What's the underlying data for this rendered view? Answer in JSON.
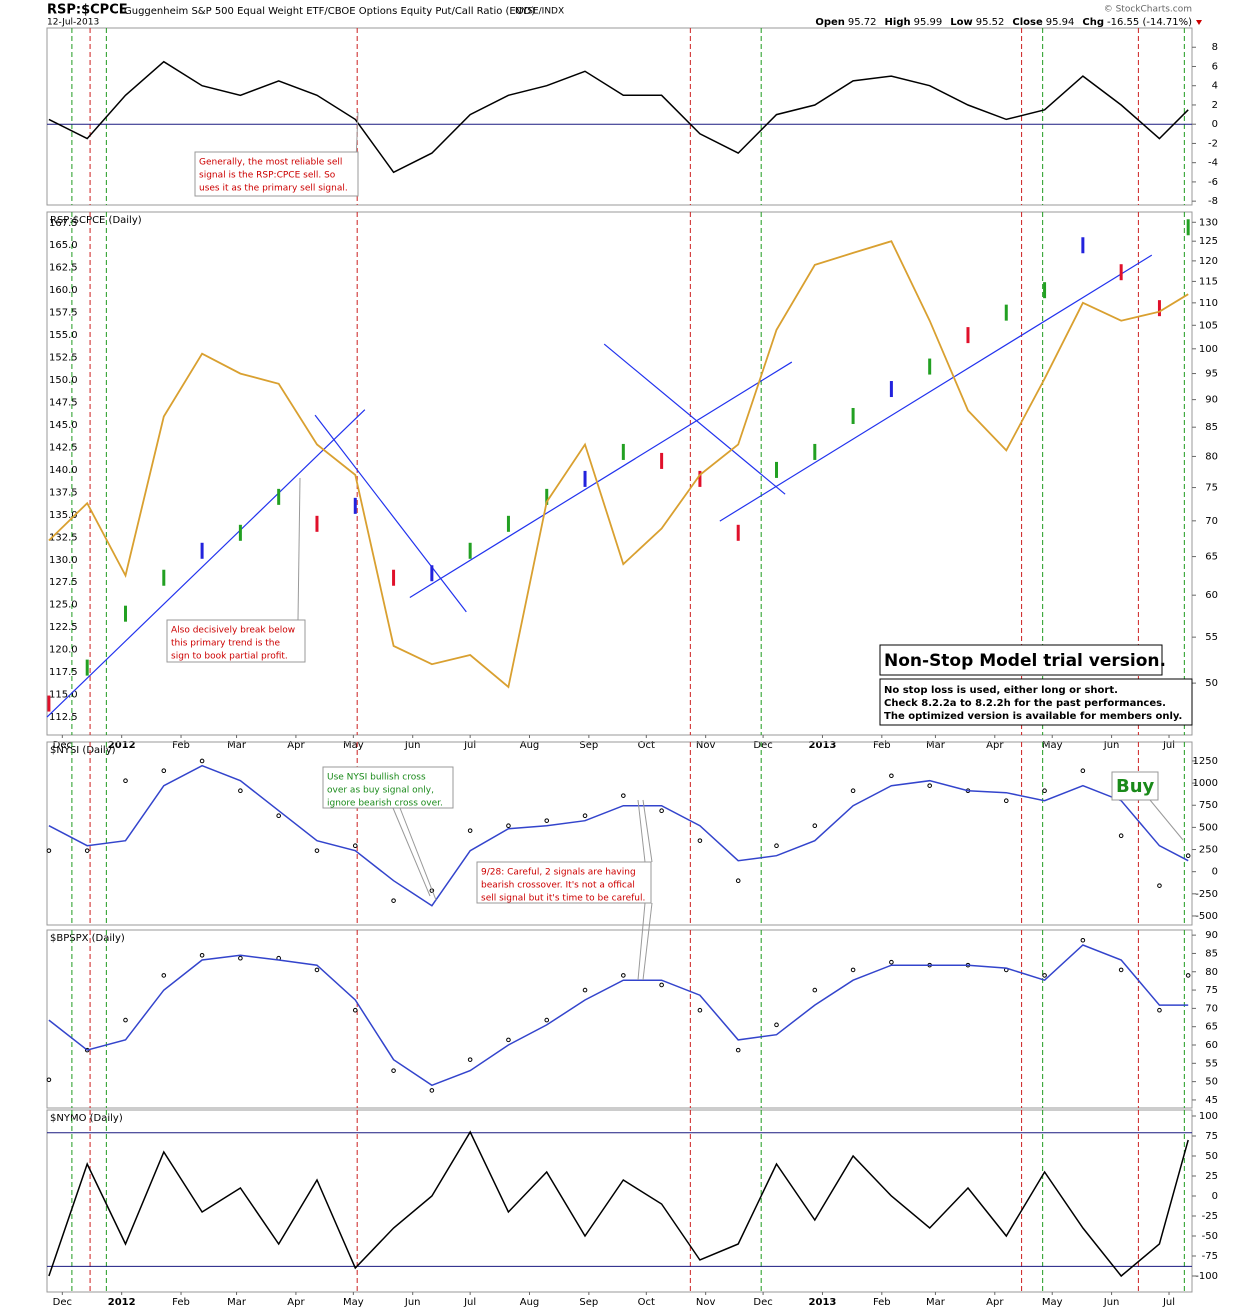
{
  "header": {
    "symbol": "RSP:$CPCE",
    "description": "Guggenheim S&P 500 Equal Weight ETF/CBOE Options Equity Put/Call Ratio (EOD)",
    "exchange": "NYSE/INDX",
    "date": "12-Jul-2013",
    "source": "© StockCharts.com",
    "quote": [
      {
        "label": "Open",
        "value": "95.72"
      },
      {
        "label": "High",
        "value": "95.99"
      },
      {
        "label": "Low",
        "value": "95.52"
      },
      {
        "label": "Close",
        "value": "95.94"
      },
      {
        "label": "Chg",
        "value": "-16.55 (-14.71%)"
      }
    ]
  },
  "signals": [
    {
      "x": 5,
      "color": "#1f9a1f"
    },
    {
      "x": 14.5,
      "color": "#cc1f1f"
    },
    {
      "x": 23,
      "color": "#1f9a1f"
    },
    {
      "x": 154,
      "color": "#cc1f1f"
    },
    {
      "x": 328,
      "color": "#cc1f1f"
    },
    {
      "x": 365,
      "color": "#1f9a1f"
    },
    {
      "x": 501,
      "color": "#cc1f1f"
    },
    {
      "x": 512,
      "color": "#1f9a1f"
    },
    {
      "x": 562,
      "color": "#cc1f1f"
    },
    {
      "x": 586,
      "color": "#1f9a1f"
    }
  ],
  "annotations": {
    "sell_note": [
      "Generally, the most reliable sell",
      "signal is the RSP:CPCE sell. So",
      "uses it as the primary sell signal."
    ],
    "trend_note": [
      "Also decisively break below",
      "this primary trend is the",
      "sign to book partial profit."
    ],
    "nysi_note": [
      "Use NYSI bullish cross",
      "over as buy signal only,",
      "ignore bearish cross over."
    ],
    "careful_note": [
      "9/28: Careful, 2 signals are having",
      "bearish crossover. It's not a offical",
      "sell signal but it's time to be careful."
    ],
    "model_title": "Non-Stop Model trial version.",
    "model_notes": [
      "No stop loss is used, either long or short.",
      "Check 8.2.2a to 8.2.2h for the past performances.",
      "The optimized version is available for members only."
    ],
    "buy": "Buy"
  },
  "chart_data": [
    {
      "type": "line",
      "xlim": [
        -8,
        590
      ],
      "ylim": [
        -8.4,
        10
      ],
      "ytick_side": "right",
      "yticks": [
        8,
        6,
        4,
        2,
        0,
        -2,
        -4,
        -6,
        -8
      ],
      "levels": [
        0
      ],
      "x": [
        -7,
        13,
        33,
        53,
        73,
        93,
        113,
        133,
        153,
        173,
        193,
        213,
        233,
        253,
        273,
        293,
        313,
        333,
        353,
        373,
        393,
        413,
        433,
        453,
        473,
        493,
        513,
        533,
        553,
        573,
        588
      ],
      "series": [
        {
          "color": "#000000",
          "style": "line",
          "values": [
            0.5,
            -1.5,
            3,
            6.5,
            4,
            3,
            4.5,
            3,
            0.5,
            -5,
            -3,
            1,
            3,
            4,
            5.5,
            3,
            3,
            -1,
            -3,
            1,
            2,
            4.5,
            5,
            4,
            2,
            0.5,
            1.5,
            5,
            2,
            -1.5,
            1.5
          ]
        }
      ]
    },
    {
      "type": "price",
      "title": "RSP:$CPCE (Daily)",
      "xlim": [
        -8,
        590
      ],
      "ylim": [
        110.5,
        168.7
      ],
      "ytick_side": "left",
      "yticks": [
        {
          "value": 112.5,
          "label": "112.5"
        },
        {
          "value": 115,
          "label": "115.0"
        },
        {
          "value": 117.5,
          "label": "117.5"
        },
        {
          "value": 120,
          "label": "120.0"
        },
        {
          "value": 122.5,
          "label": "122.5"
        },
        {
          "value": 125,
          "label": "125.0"
        },
        {
          "value": 127.5,
          "label": "127.5"
        },
        {
          "value": 130,
          "label": "130.0"
        },
        {
          "value": 132.5,
          "label": "132.5"
        },
        {
          "value": 135,
          "label": "135.0"
        },
        {
          "value": 137.5,
          "label": "137.5"
        },
        {
          "value": 140,
          "label": "140.0"
        },
        {
          "value": 142.5,
          "label": "142.5"
        },
        {
          "value": 145,
          "label": "145.0"
        },
        {
          "value": 147.5,
          "label": "147.5"
        },
        {
          "value": 150,
          "label": "150.0"
        },
        {
          "value": 152.5,
          "label": "152.5"
        },
        {
          "value": 155,
          "label": "155.0"
        },
        {
          "value": 157.5,
          "label": "157.5"
        },
        {
          "value": 160,
          "label": "160.0"
        },
        {
          "value": 162.5,
          "label": "162.5"
        },
        {
          "value": 165,
          "label": "165.0"
        },
        {
          "value": 167.5,
          "label": "167.5"
        }
      ],
      "y2lim": [
        44.9,
        132.8
      ],
      "y2log": true,
      "y2ticks": [
        130,
        125,
        120,
        115,
        110,
        105,
        100,
        95,
        90,
        85,
        80,
        75,
        70,
        65,
        60,
        55,
        50
      ],
      "xticks": [
        {
          "value": 0,
          "label": "Dec"
        },
        {
          "value": 31,
          "label": "2012"
        },
        {
          "value": 62,
          "label": "Feb"
        },
        {
          "value": 91,
          "label": "Mar"
        },
        {
          "value": 122,
          "label": "Apr"
        },
        {
          "value": 152,
          "label": "May"
        },
        {
          "value": 183,
          "label": "Jun"
        },
        {
          "value": 213,
          "label": "Jul"
        },
        {
          "value": 244,
          "label": "Aug"
        },
        {
          "value": 275,
          "label": "Sep"
        },
        {
          "value": 305,
          "label": "Oct"
        },
        {
          "value": 336,
          "label": "Nov"
        },
        {
          "value": 366,
          "label": "Dec"
        },
        {
          "value": 397,
          "label": "2013"
        },
        {
          "value": 428,
          "label": "Feb"
        },
        {
          "value": 456,
          "label": "Mar"
        },
        {
          "value": 487,
          "label": "Apr"
        },
        {
          "value": 517,
          "label": "May"
        },
        {
          "value": 548,
          "label": "Jun"
        },
        {
          "value": 578,
          "label": "Jul"
        }
      ],
      "x": [
        -7,
        13,
        33,
        53,
        73,
        93,
        113,
        133,
        153,
        173,
        193,
        213,
        233,
        253,
        273,
        293,
        313,
        333,
        353,
        373,
        393,
        413,
        433,
        453,
        473,
        493,
        513,
        533,
        553,
        573,
        588
      ],
      "series": [
        {
          "style": "bars",
          "values": [
            114,
            118,
            124,
            128,
            131,
            133,
            137,
            134,
            136,
            128,
            128.5,
            131,
            134,
            137,
            139,
            142,
            141,
            139,
            133,
            140,
            142,
            146,
            149,
            151.5,
            155,
            157.5,
            160,
            165,
            162,
            158,
            167
          ],
          "colors": [
            "#e0102a",
            "#22a022",
            "#22a022",
            "#22a022",
            "#2222dd",
            "#22a022",
            "#22a022",
            "#e0102a",
            "#2222dd",
            "#e0102a",
            "#2222dd",
            "#22a022",
            "#22a022",
            "#22a022",
            "#2222dd",
            "#22a022",
            "#e0102a",
            "#e0102a",
            "#e0102a",
            "#22a022",
            "#22a022",
            "#22a022",
            "#2222dd",
            "#22a022",
            "#e0102a",
            "#22a022",
            "#22a022",
            "#2222dd",
            "#e0102a",
            "#e0102a",
            "#22a022"
          ]
        },
        {
          "style": "line",
          "axis": "y2",
          "color": "#d9a030",
          "values": [
            67.2,
            72.6,
            62.5,
            86.9,
            99,
            95,
            93,
            82,
            77,
            54,
            52,
            53,
            49.6,
            72.8,
            82,
            64,
            68.9,
            77,
            82,
            104,
            119,
            122,
            125,
            106,
            88,
            81,
            94,
            110,
            106,
            108,
            112
          ]
        }
      ],
      "trendlines": [
        {
          "x1": -8,
          "y1": 112.5,
          "x2": 158,
          "y2": 146.7
        },
        {
          "x1": 132,
          "y1": 146.1,
          "x2": 211,
          "y2": 124.2
        },
        {
          "x1": 181.5,
          "y1": 125.8,
          "x2": 381,
          "y2": 152
        },
        {
          "x1": 283,
          "y1": 154,
          "x2": 377.5,
          "y2": 137.3
        },
        {
          "x1": 343.4,
          "y1": 134.3,
          "x2": 569,
          "y2": 163.9
        }
      ],
      "trend_color": "#2233ee"
    },
    {
      "type": "line",
      "title": "$NYSI (Daily)",
      "xlim": [
        -8,
        590
      ],
      "ylim": [
        -602,
        1464
      ],
      "ytick_side": "right",
      "yticks": [
        1250,
        1000,
        750,
        500,
        250,
        0,
        -250,
        -500
      ],
      "x": [
        -7,
        13,
        33,
        53,
        73,
        93,
        113,
        133,
        153,
        173,
        193,
        213,
        233,
        253,
        273,
        293,
        313,
        333,
        353,
        373,
        393,
        413,
        433,
        453,
        473,
        493,
        513,
        533,
        553,
        573,
        588
      ],
      "series": [
        {
          "style": "dots",
          "color": "#000000",
          "values": [
            237,
            237,
            1027,
            1140,
            1250,
            914,
            632,
            237,
            293,
            -327,
            -214,
            463,
            519,
            576,
            632,
            858,
            688,
            350,
            -102,
            293,
            519,
            914,
            1083,
            971,
            914,
            801,
            914,
            1140,
            406,
            -158,
            180
          ]
        },
        {
          "style": "line",
          "color": "#3344cc",
          "values": [
            519,
            293,
            350,
            971,
            1196,
            1027,
            688,
            350,
            237,
            -102,
            -384,
            237,
            485,
            519,
            576,
            745,
            745,
            519,
            124,
            180,
            350,
            745,
            971,
            1027,
            914,
            892,
            801,
            971,
            801,
            293,
            124
          ]
        }
      ]
    },
    {
      "type": "line",
      "title": "$BPSPX (Daily)",
      "xlim": [
        -8,
        590
      ],
      "ylim": [
        42.8,
        91.4
      ],
      "ytick_side": "right",
      "yticks": [
        90,
        85,
        80,
        75,
        70,
        65,
        60,
        55,
        50,
        45
      ],
      "x": [
        -7,
        13,
        33,
        53,
        73,
        93,
        113,
        133,
        153,
        173,
        193,
        213,
        233,
        253,
        273,
        293,
        313,
        333,
        353,
        373,
        393,
        413,
        433,
        453,
        473,
        493,
        513,
        533,
        553,
        573,
        588
      ],
      "series": [
        {
          "style": "dots",
          "color": "#000000",
          "values": [
            50.5,
            58.6,
            66.8,
            79,
            84.5,
            83.7,
            83.7,
            80.5,
            69.5,
            53,
            47.6,
            56,
            61.4,
            66.8,
            75,
            79,
            76.4,
            69.5,
            58.6,
            65.5,
            75,
            80.5,
            82.6,
            81.8,
            81.8,
            80.5,
            79,
            88.6,
            80.5,
            69.5,
            79
          ]
        },
        {
          "style": "line",
          "color": "#3344cc",
          "values": [
            66.8,
            58.6,
            61.4,
            75,
            83.2,
            84.5,
            83.2,
            81.8,
            72.3,
            56,
            49,
            53,
            60,
            65.5,
            72.3,
            77.7,
            77.7,
            73.6,
            61.4,
            62.8,
            70.9,
            77.7,
            81.8,
            81.8,
            81.8,
            81,
            77.7,
            87.3,
            83.2,
            70.9,
            70.9
          ]
        }
      ]
    },
    {
      "type": "line",
      "title": "$NYMO (Daily)",
      "xlim": [
        -8,
        590
      ],
      "ylim": [
        -120,
        107.5
      ],
      "ytick_side": "right",
      "yticks": [
        100,
        75,
        50,
        25,
        0,
        -25,
        -50,
        -75,
        -100
      ],
      "levels": [
        79,
        -88
      ],
      "xticks": [
        {
          "value": 0,
          "label": "Dec"
        },
        {
          "value": 31,
          "label": "2012"
        },
        {
          "value": 62,
          "label": "Feb"
        },
        {
          "value": 91,
          "label": "Mar"
        },
        {
          "value": 122,
          "label": "Apr"
        },
        {
          "value": 152,
          "label": "May"
        },
        {
          "value": 183,
          "label": "Jun"
        },
        {
          "value": 213,
          "label": "Jul"
        },
        {
          "value": 244,
          "label": "Aug"
        },
        {
          "value": 275,
          "label": "Sep"
        },
        {
          "value": 305,
          "label": "Oct"
        },
        {
          "value": 336,
          "label": "Nov"
        },
        {
          "value": 366,
          "label": "Dec"
        },
        {
          "value": 397,
          "label": "2013"
        },
        {
          "value": 428,
          "label": "Feb"
        },
        {
          "value": 456,
          "label": "Mar"
        },
        {
          "value": 487,
          "label": "Apr"
        },
        {
          "value": 517,
          "label": "May"
        },
        {
          "value": 548,
          "label": "Jun"
        },
        {
          "value": 578,
          "label": "Jul"
        }
      ],
      "x": [
        -7,
        13,
        33,
        53,
        73,
        93,
        113,
        133,
        153,
        173,
        193,
        213,
        233,
        253,
        273,
        293,
        313,
        333,
        353,
        373,
        393,
        413,
        433,
        453,
        473,
        493,
        513,
        533,
        553,
        573,
        588
      ],
      "series": [
        {
          "style": "line",
          "color": "#000000",
          "values": [
            -100,
            40,
            -60,
            55,
            -20,
            10,
            -60,
            20,
            -90,
            -40,
            0,
            80,
            -20,
            30,
            -50,
            20,
            -10,
            -80,
            -60,
            40,
            -30,
            50,
            0,
            -40,
            10,
            -50,
            30,
            -40,
            -100,
            -60,
            70
          ]
        }
      ]
    }
  ]
}
